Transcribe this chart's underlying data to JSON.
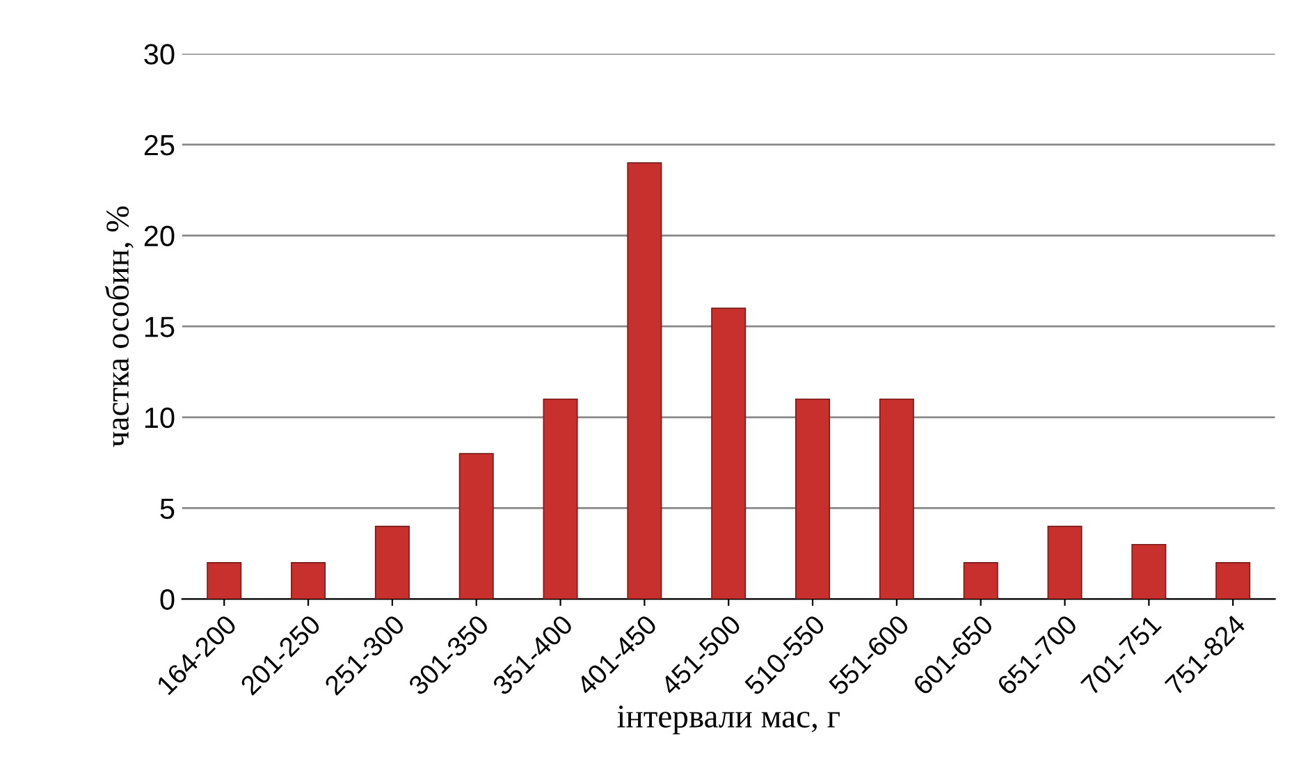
{
  "chart_data": {
    "type": "bar",
    "xlabel": "інтервали мас, г",
    "ylabel": "частка особин, %",
    "categories": [
      "164-200",
      "201-250",
      "251-300",
      "301-350",
      "351-400",
      "401-450",
      "451-500",
      "510-550",
      "551-600",
      "601-650",
      "651-700",
      "701-751",
      "751-824"
    ],
    "values": [
      2,
      2,
      4,
      8,
      11,
      24,
      16,
      11,
      11,
      2,
      4,
      3,
      2
    ],
    "color": "#c8302e",
    "ylim": [
      0,
      30
    ],
    "yticks": [
      0,
      5,
      10,
      15,
      20,
      25,
      30
    ],
    "grid": "y"
  }
}
